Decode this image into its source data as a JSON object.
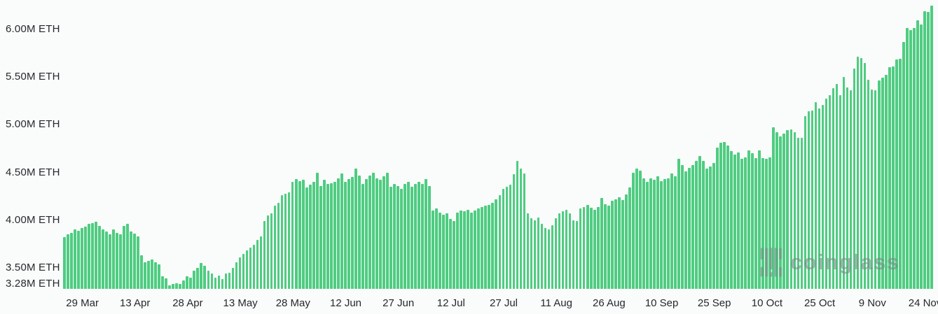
{
  "watermark": {
    "text": "coinglass"
  },
  "chart_data": {
    "type": "bar",
    "title": "",
    "xlabel": "",
    "ylabel": "",
    "unit": "M ETH",
    "bar_color": "#4fcc81",
    "background_color": "#fafbfb",
    "label_color": "#26282d",
    "grid": false,
    "legend": false,
    "ylim": [
      3.28,
      6.3
    ],
    "y_ticks": [
      {
        "label": "6.00M ETH",
        "value": 6.0
      },
      {
        "label": "5.50M ETH",
        "value": 5.5
      },
      {
        "label": "5.00M ETH",
        "value": 5.0
      },
      {
        "label": "4.50M ETH",
        "value": 4.5
      },
      {
        "label": "4.00M ETH",
        "value": 4.0
      },
      {
        "label": "3.50M ETH",
        "value": 3.5
      },
      {
        "label": "3.28M ETH",
        "value": 3.28
      }
    ],
    "x_ticks": [
      {
        "label": "29 Mar",
        "index": 5
      },
      {
        "label": "13 Apr",
        "index": 20
      },
      {
        "label": "28 Apr",
        "index": 35
      },
      {
        "label": "13 May",
        "index": 50
      },
      {
        "label": "28 May",
        "index": 65
      },
      {
        "label": "12 Jun",
        "index": 80
      },
      {
        "label": "27 Jun",
        "index": 95
      },
      {
        "label": "12 Jul",
        "index": 110
      },
      {
        "label": "27 Jul",
        "index": 125
      },
      {
        "label": "11 Aug",
        "index": 140
      },
      {
        "label": "26 Aug",
        "index": 155
      },
      {
        "label": "10 Sep",
        "index": 170
      },
      {
        "label": "25 Sep",
        "index": 185
      },
      {
        "label": "10 Oct",
        "index": 200
      },
      {
        "label": "25 Oct",
        "index": 215
      },
      {
        "label": "9 Nov",
        "index": 230
      },
      {
        "label": "24 Nov",
        "index": 245
      }
    ],
    "values": [
      3.82,
      3.85,
      3.87,
      3.9,
      3.89,
      3.92,
      3.93,
      3.96,
      3.97,
      3.98,
      3.94,
      3.9,
      3.88,
      3.85,
      3.9,
      3.87,
      3.85,
      3.94,
      3.96,
      3.88,
      3.86,
      3.83,
      3.63,
      3.56,
      3.57,
      3.59,
      3.56,
      3.54,
      3.41,
      3.39,
      3.32,
      3.33,
      3.34,
      3.33,
      3.37,
      3.41,
      3.4,
      3.47,
      3.5,
      3.55,
      3.52,
      3.47,
      3.44,
      3.4,
      3.42,
      3.38,
      3.44,
      3.45,
      3.5,
      3.56,
      3.61,
      3.65,
      3.68,
      3.71,
      3.74,
      3.79,
      3.83,
      3.99,
      4.05,
      4.07,
      4.15,
      4.18,
      4.26,
      4.28,
      4.29,
      4.4,
      4.43,
      4.41,
      4.42,
      4.34,
      4.37,
      4.4,
      4.5,
      4.36,
      4.42,
      4.38,
      4.39,
      4.4,
      4.44,
      4.49,
      4.4,
      4.43,
      4.45,
      4.54,
      4.47,
      4.38,
      4.43,
      4.47,
      4.5,
      4.44,
      4.42,
      4.46,
      4.5,
      4.35,
      4.38,
      4.36,
      4.33,
      4.38,
      4.4,
      4.35,
      4.38,
      4.4,
      4.38,
      4.43,
      4.36,
      4.1,
      4.12,
      4.08,
      4.06,
      4.07,
      4.01,
      3.99,
      4.08,
      4.1,
      4.09,
      4.11,
      4.08,
      4.1,
      4.12,
      4.14,
      4.15,
      4.16,
      4.18,
      4.22,
      4.26,
      4.33,
      4.35,
      4.37,
      4.48,
      4.62,
      4.54,
      4.49,
      4.07,
      4.02,
      4.0,
      4.03,
      3.96,
      3.92,
      3.9,
      3.95,
      4.02,
      4.07,
      4.09,
      4.11,
      4.07,
      4.0,
      3.99,
      4.12,
      4.14,
      4.16,
      4.13,
      4.11,
      4.14,
      4.23,
      4.17,
      4.15,
      4.2,
      4.22,
      4.24,
      4.21,
      4.27,
      4.34,
      4.5,
      4.54,
      4.52,
      4.44,
      4.4,
      4.44,
      4.42,
      4.46,
      4.41,
      4.43,
      4.44,
      4.49,
      4.46,
      4.64,
      4.58,
      4.51,
      4.55,
      4.58,
      4.62,
      4.67,
      4.62,
      4.54,
      4.56,
      4.6,
      4.76,
      4.81,
      4.82,
      4.78,
      4.72,
      4.69,
      4.71,
      4.64,
      4.66,
      4.73,
      4.7,
      4.65,
      4.73,
      4.65,
      4.64,
      4.66,
      4.97,
      4.92,
      4.88,
      4.91,
      4.94,
      4.95,
      4.92,
      4.86,
      4.86,
      5.09,
      5.14,
      5.15,
      5.24,
      5.17,
      5.21,
      5.27,
      5.31,
      5.38,
      5.43,
      5.31,
      5.5,
      5.39,
      5.36,
      5.59,
      5.71,
      5.7,
      5.65,
      5.47,
      5.37,
      5.36,
      5.46,
      5.49,
      5.52,
      5.6,
      5.61,
      5.68,
      5.69,
      5.87,
      6.01,
      5.99,
      6.01,
      6.09,
      6.05,
      6.19,
      6.18,
      6.25
    ]
  }
}
